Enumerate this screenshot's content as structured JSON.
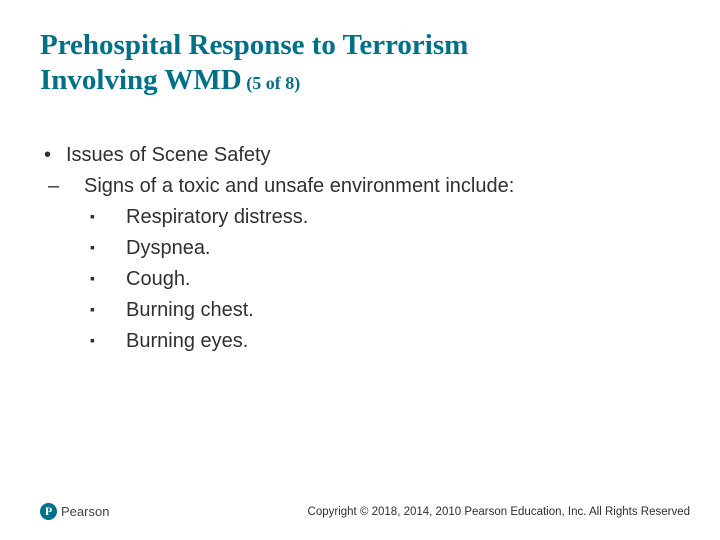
{
  "title": {
    "line1": "Prehospital Response to Terrorism",
    "line2_main": "Involving WMD",
    "line2_count": " (5 of 8)"
  },
  "bullets": {
    "lvl1_0": "Issues of Scene Safety",
    "lvl2_0": "Signs of a toxic and unsafe environment include:",
    "lvl3_0": "Respiratory distress.",
    "lvl3_1": "Dyspnea.",
    "lvl3_2": "Cough.",
    "lvl3_3": "Burning chest.",
    "lvl3_4": "Burning eyes."
  },
  "footer": {
    "logo_letter": "P",
    "logo_text": "Pearson",
    "copyright": "Copyright © 2018, 2014, 2010 Pearson Education, Inc. All Rights Reserved"
  },
  "colors": {
    "accent": "#006f88",
    "body_text": "#303030",
    "background": "#ffffff"
  }
}
